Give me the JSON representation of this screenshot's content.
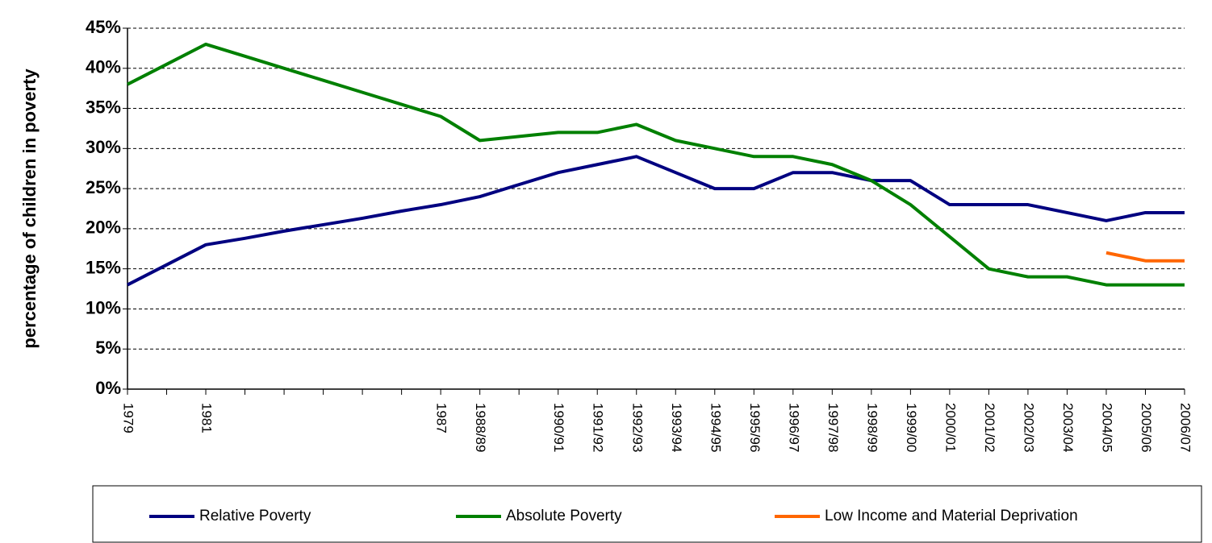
{
  "chart_data": {
    "type": "line",
    "y_label": "percentage of children in poverty",
    "categories": [
      "1979",
      null,
      "1981",
      null,
      null,
      null,
      null,
      null,
      "1987",
      "1988/89",
      null,
      "1990/91",
      "1991/92",
      "1992/93",
      "1993/94",
      "1994/95",
      "1995/96",
      "1996/97",
      "1997/98",
      "1998/99",
      "1999/00",
      "2000/01",
      "2001/02",
      "2002/03",
      "2003/04",
      "2004/05",
      "2005/06",
      "2006/07"
    ],
    "series": [
      {
        "name": "Relative Poverty",
        "color": "#000080",
        "values": [
          13,
          15.5,
          18,
          18.8,
          19.7,
          20.5,
          21.3,
          22.2,
          23,
          24,
          25.5,
          27,
          28,
          29,
          27,
          25,
          25,
          27,
          27,
          26,
          26,
          23,
          23,
          23,
          22,
          21,
          22,
          22
        ]
      },
      {
        "name": "Absolute Poverty",
        "color": "#008000",
        "values": [
          38,
          40.5,
          43,
          41.5,
          40,
          38.5,
          37,
          35.5,
          34,
          31,
          31.5,
          32,
          32,
          33,
          31,
          30,
          29,
          29,
          28,
          26,
          23,
          19,
          15,
          14,
          14,
          13,
          13,
          13
        ]
      },
      {
        "name": "Low Income and Material Deprivation",
        "color": "#ff6600",
        "values": [
          null,
          null,
          null,
          null,
          null,
          null,
          null,
          null,
          null,
          null,
          null,
          null,
          null,
          null,
          null,
          null,
          null,
          null,
          null,
          null,
          null,
          null,
          null,
          null,
          null,
          17,
          16,
          16
        ]
      }
    ],
    "ylim": [
      0,
      45
    ],
    "yticks": [
      {
        "value": 0,
        "label": "0%"
      },
      {
        "value": 5,
        "label": "5%"
      },
      {
        "value": 10,
        "label": "10%"
      },
      {
        "value": 15,
        "label": "15%"
      },
      {
        "value": 20,
        "label": "20%"
      },
      {
        "value": 25,
        "label": "25%"
      },
      {
        "value": 30,
        "label": "30%"
      },
      {
        "value": 35,
        "label": "35%"
      },
      {
        "value": 40,
        "label": "40%"
      },
      {
        "value": 45,
        "label": "45%"
      }
    ],
    "grid": true,
    "legend": "bottom"
  }
}
